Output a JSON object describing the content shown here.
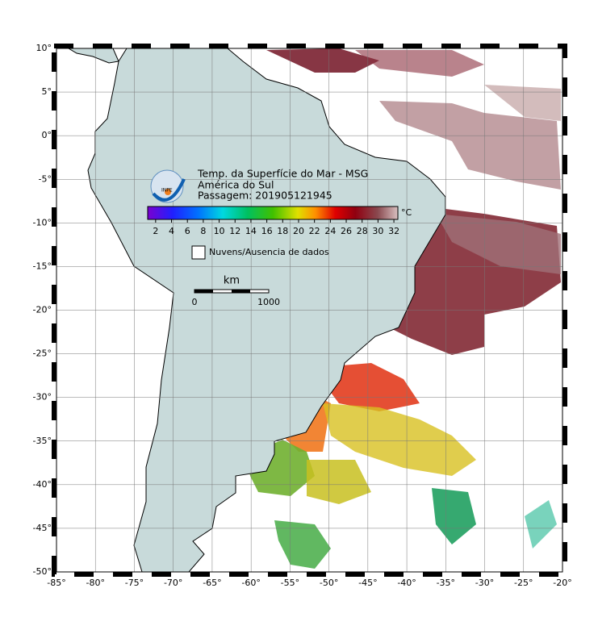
{
  "map": {
    "xlim": [
      -85,
      -20
    ],
    "ylim": [
      -50,
      10
    ],
    "xticks": [
      {
        "value": -85,
        "label": "-85°"
      },
      {
        "value": -80,
        "label": "-80°"
      },
      {
        "value": -75,
        "label": "-75°"
      },
      {
        "value": -70,
        "label": "-70°"
      },
      {
        "value": -65,
        "label": "-65°"
      },
      {
        "value": -60,
        "label": "-60°"
      },
      {
        "value": -55,
        "label": "-55°"
      },
      {
        "value": -50,
        "label": "-50°"
      },
      {
        "value": -45,
        "label": "-45°"
      },
      {
        "value": -40,
        "label": "-40°"
      },
      {
        "value": -35,
        "label": "-35°"
      },
      {
        "value": -30,
        "label": "-30°"
      },
      {
        "value": -25,
        "label": "-25°"
      },
      {
        "value": -20,
        "label": "-20°"
      }
    ],
    "yticks": [
      {
        "value": 10,
        "label": "10°"
      },
      {
        "value": 5,
        "label": "5°"
      },
      {
        "value": 0,
        "label": "0°"
      },
      {
        "value": -5,
        "label": "-5°"
      },
      {
        "value": -10,
        "label": "-10°"
      },
      {
        "value": -15,
        "label": "-15°"
      },
      {
        "value": -20,
        "label": "-20°"
      },
      {
        "value": -25,
        "label": "-25°"
      },
      {
        "value": -30,
        "label": "-30°"
      },
      {
        "value": -35,
        "label": "-35°"
      },
      {
        "value": -40,
        "label": "-40°"
      },
      {
        "value": -45,
        "label": "-45°"
      },
      {
        "value": -50,
        "label": "-50°"
      }
    ],
    "grid": true
  },
  "legend": {
    "title": "Temp. da Superfície do Mar - MSG",
    "region": "América do Sul",
    "pass": "Passagem: 201905121945",
    "colorbar": {
      "lim": [
        1,
        32.5
      ],
      "ticks": [
        2,
        4,
        6,
        8,
        10,
        12,
        14,
        16,
        18,
        20,
        22,
        24,
        26,
        28,
        30,
        32
      ],
      "unit": "°C"
    },
    "clouds": "Nuvens/Ausencia de dados",
    "logo": "INPE"
  },
  "scalebar": {
    "unit": "km",
    "start": "0",
    "end": "1000"
  }
}
